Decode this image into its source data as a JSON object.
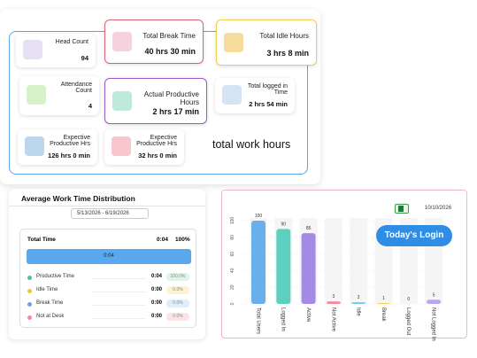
{
  "summary": {
    "cards": [
      {
        "label": "Head Count",
        "value": "94"
      },
      {
        "label": "Total Break Time",
        "value": "40 hrs 30 min"
      },
      {
        "label": "Total Idle Hours",
        "value": "3 hrs 8 min"
      },
      {
        "label": "Attendance Count",
        "value": "4"
      },
      {
        "label": "Actual Productive Hours",
        "value": "2 hrs 17 min"
      },
      {
        "label": "Total logged in Time",
        "value": "2 hrs 54 min"
      },
      {
        "label": "Expective Productive Hrs",
        "value": "126 hrs 0 min"
      },
      {
        "label": "Expective Productive Hrs",
        "value": "32 hrs 0 min"
      }
    ],
    "note": "total work hours"
  },
  "distribution": {
    "title": "Average Work Time Distribution",
    "date_range": "5/13/2026 - 6/19/2026",
    "total": {
      "label": "Total Time",
      "time": "0:04",
      "percent": "100%"
    },
    "bar_label": "0:04",
    "rows": [
      {
        "label": "Productive Time",
        "time": "0:04",
        "percent": "100.0%"
      },
      {
        "label": "Idle Time",
        "time": "0:00",
        "percent": "0.0%"
      },
      {
        "label": "Break Time",
        "time": "0:00",
        "percent": "0.0%"
      },
      {
        "label": "Not at Desk",
        "time": "0:00",
        "percent": "0.0%"
      }
    ]
  },
  "login_chart": {
    "type": "bar",
    "date": "10/10/2026",
    "button": "Today's Login",
    "categories": [
      "Total Users",
      "Logged In",
      "Active",
      "Not Active",
      "Idle",
      "Break",
      "Logged Out",
      "Not Logged In"
    ],
    "values": [
      100,
      90,
      85,
      3,
      2,
      1,
      0,
      5
    ],
    "colors": [
      "#6aaeea",
      "#5fcfc0",
      "#a48ae6",
      "#f48aa0",
      "#74c6ea",
      "#f2cf5a",
      "#c4c4c4",
      "#b9a6ee"
    ],
    "ylim": [
      0,
      100
    ],
    "yticks": [
      0,
      20,
      40,
      60,
      80,
      100
    ]
  }
}
